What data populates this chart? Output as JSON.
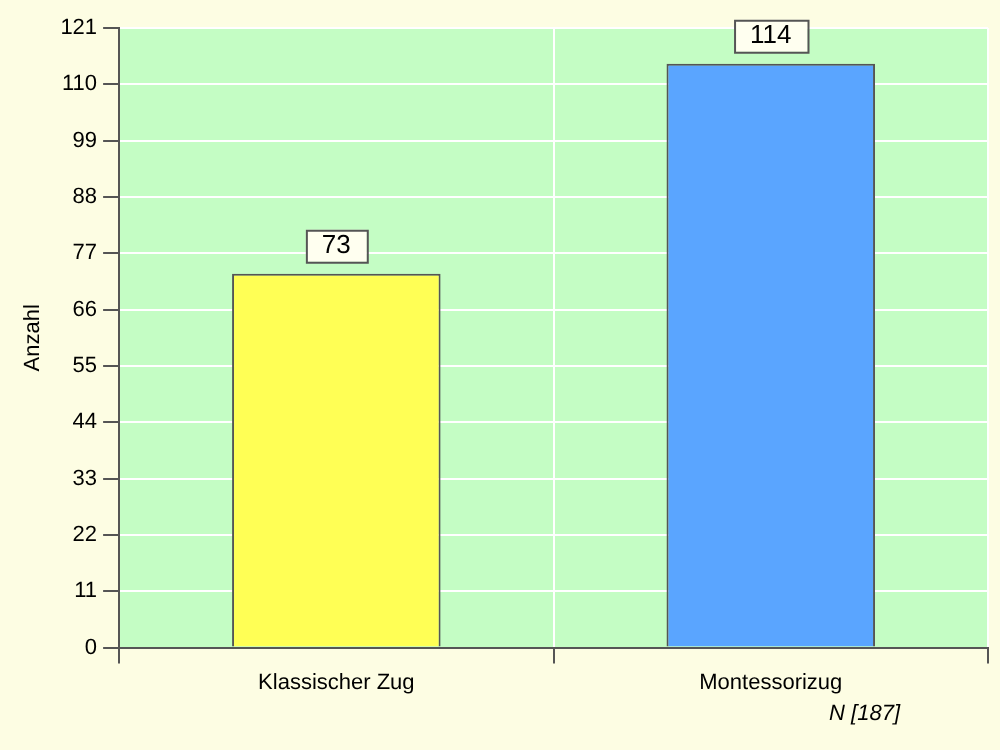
{
  "chart_data": {
    "type": "bar",
    "ylabel": "Anzahl",
    "categories": [
      "Klassischer Zug",
      "Montessorizug"
    ],
    "values": [
      73,
      114
    ],
    "colors": [
      "#ffff55",
      "#5aa5ff"
    ],
    "ylim": [
      0,
      121
    ],
    "yticks": [
      0,
      11,
      22,
      33,
      44,
      55,
      66,
      77,
      88,
      99,
      110,
      121
    ],
    "grid": true,
    "data_labels": true,
    "annotations": [
      "N [187]"
    ]
  }
}
